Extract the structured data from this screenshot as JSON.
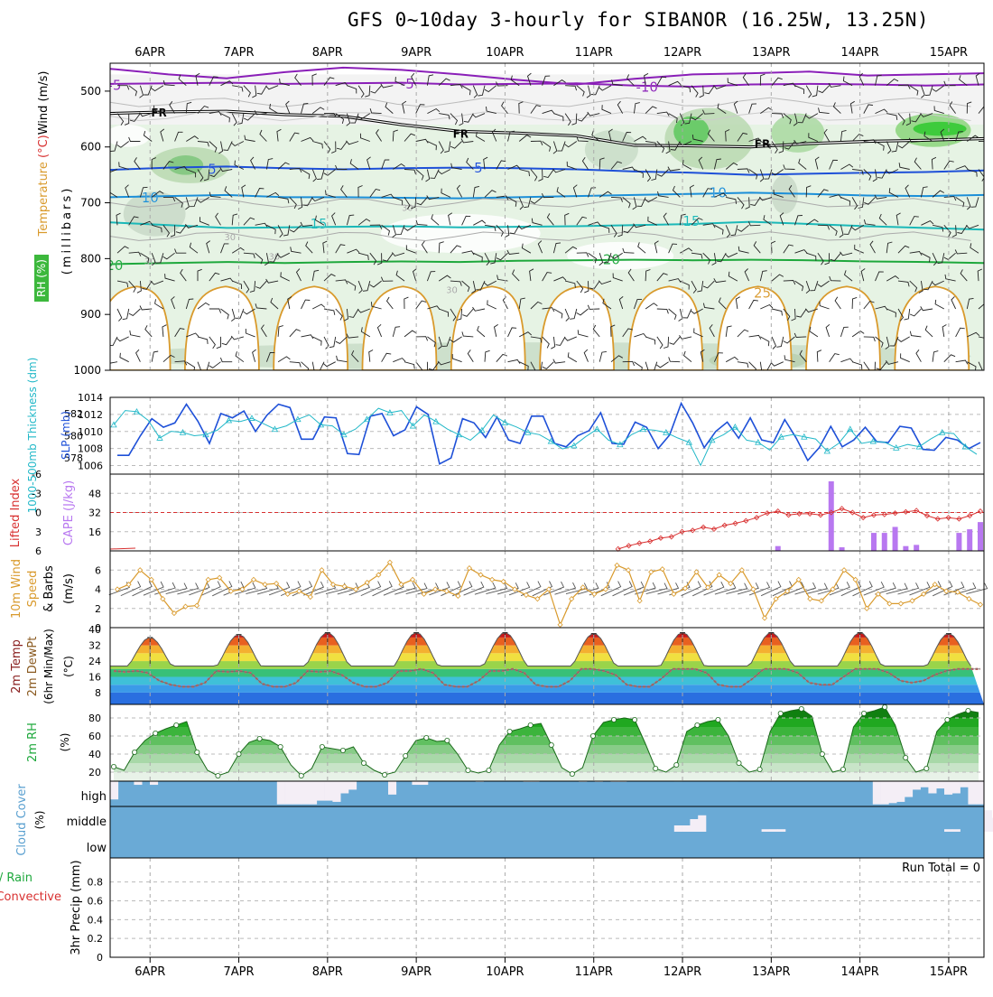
{
  "title": "GFS 0~10day 3-hourly for SIBANOR (16.25W, 13.25N)",
  "dates": [
    "6APR",
    "7APR",
    "8APR",
    "9APR",
    "10APR",
    "11APR",
    "12APR",
    "13APR",
    "14APR",
    "15APR"
  ],
  "colors": {
    "purple": "#8a1fb8",
    "black": "#000000",
    "blue": "#1e50d8",
    "lightblue": "#1c8fd8",
    "teal": "#1bb8b8",
    "green": "#1ea83c",
    "orange": "#d99a2c",
    "cyan": "#22b8c8",
    "red": "#d83030",
    "cape": "#b878f0",
    "cloud": "#6aaad6",
    "cloudClear": "#f4eef6"
  },
  "chart_data": [
    {
      "type": "line",
      "panel": "profile",
      "ylabel_parts": [
        "RH (%)",
        "Temperature",
        "(°C)",
        "Wind",
        "(m/s)",
        "(millibars)"
      ],
      "yticks": [
        500,
        600,
        700,
        800,
        900,
        1000
      ],
      "ylim": [
        1000,
        450
      ],
      "isotherm_labels": [
        {
          "text": "-5",
          "t": 0.6,
          "p": 490
        },
        {
          "text": "-5",
          "t": 3.9,
          "p": 487
        },
        {
          "text": "-10",
          "t": 6.6,
          "p": 493
        },
        {
          "text": "FR",
          "t": 1.1,
          "p": 537
        },
        {
          "text": "FR",
          "t": 4.5,
          "p": 575
        },
        {
          "text": "FR",
          "t": 7.9,
          "p": 593
        },
        {
          "text": "5",
          "t": 1.7,
          "p": 640
        },
        {
          "text": "5",
          "t": 4.7,
          "p": 638
        },
        {
          "text": "10",
          "t": 1.0,
          "p": 691
        },
        {
          "text": "10",
          "t": 7.4,
          "p": 682
        },
        {
          "text": "15",
          "t": 2.9,
          "p": 738
        },
        {
          "text": "15",
          "t": 7.1,
          "p": 733
        },
        {
          "text": "20",
          "t": 0.6,
          "p": 812
        },
        {
          "text": "20",
          "t": 6.2,
          "p": 802
        },
        {
          "text": "25",
          "t": 7.9,
          "p": 862
        },
        {
          "text": "30",
          "t": 3.9,
          "p": 706
        },
        {
          "text": "30",
          "t": 2.4,
          "p": 794
        },
        {
          "text": "30",
          "t": 4.4,
          "p": 854
        },
        {
          "text": "30",
          "t": 1.0,
          "p": 803
        },
        {
          "text": "30",
          "t": 1.9,
          "p": 759
        }
      ],
      "isotherms": [
        {
          "name": "-10",
          "color": "purple",
          "p": [
            460,
            470,
            477,
            466,
            458,
            462,
            470,
            480,
            488,
            478,
            470,
            468,
            465,
            472,
            470,
            468
          ]
        },
        {
          "name": "-5",
          "color": "purple",
          "p": [
            487,
            486,
            485,
            487,
            486,
            485,
            488,
            487,
            486,
            490,
            492,
            488,
            487,
            488,
            490,
            488
          ]
        },
        {
          "name": "FR",
          "color": "black",
          "p": [
            540,
            537,
            536,
            542,
            545,
            560,
            572,
            575,
            580,
            597,
            598,
            600,
            594,
            590,
            588,
            585
          ]
        },
        {
          "name": "5",
          "color": "blue",
          "p": [
            641,
            637,
            635,
            638,
            640,
            638,
            637,
            638,
            640,
            644,
            646,
            650,
            648,
            646,
            645,
            642
          ]
        },
        {
          "name": "10",
          "color": "lightblue",
          "p": [
            690,
            688,
            686,
            690,
            690,
            691,
            692,
            690,
            688,
            686,
            684,
            682,
            684,
            687,
            688,
            686
          ]
        },
        {
          "name": "15",
          "color": "teal",
          "p": [
            735,
            740,
            745,
            744,
            743,
            742,
            744,
            743,
            742,
            740,
            738,
            734,
            738,
            742,
            745,
            748
          ]
        },
        {
          "name": "20",
          "color": "green",
          "p": [
            810,
            808,
            806,
            808,
            806,
            805,
            806,
            804,
            803,
            802,
            803,
            802,
            803,
            805,
            806,
            808
          ]
        }
      ]
    },
    {
      "type": "line",
      "panel": "sealevel",
      "ylabel_left": "1000-500mb Thickness (dm)",
      "ylabel_right": "SLP (mb)",
      "left_ticks": [
        578,
        580,
        582
      ],
      "right_ticks": [
        1006,
        1008,
        1010,
        1012,
        1014
      ],
      "right_ylim": [
        1005,
        1014
      ],
      "slp": [
        1007.2,
        1007.2,
        1009.5,
        1011.5,
        1010.5,
        1011.0,
        1013.2,
        1011.2,
        1008.6,
        1012.1,
        1011.6,
        1012.4,
        1010.0,
        1011.9,
        1013.2,
        1012.8,
        1009.1,
        1009.1,
        1011.7,
        1011.6,
        1007.4,
        1007.3,
        1011.8,
        1012.1,
        1009.5,
        1010.2,
        1012.9,
        1012.0,
        1006.2,
        1006.9,
        1011.5,
        1011.0,
        1009.3,
        1011.7,
        1009.0,
        1008.6,
        1011.8,
        1011.8,
        1008.6,
        1008.2,
        1009.5,
        1010.1,
        1012.2,
        1008.6,
        1008.5,
        1011.1,
        1010.5,
        1008.0,
        1009.6,
        1013.3,
        1011.0,
        1008.1,
        1010.0,
        1011.1,
        1009.2,
        1011.6,
        1009.0,
        1008.7,
        1011.4,
        1009.2,
        1006.6,
        1008.1,
        1010.6,
        1008.2,
        1009.0,
        1010.5,
        1008.8,
        1008.7,
        1010.6,
        1010.4,
        1007.9,
        1007.8,
        1009.3,
        1009.0,
        1008.0,
        1008.7
      ],
      "thickness": [
        581.0,
        582.3,
        582.2,
        581.4,
        579.8,
        580.4,
        580.3,
        580.0,
        580.1,
        580.5,
        581.4,
        581.3,
        581.6,
        581.1,
        580.6,
        580.9,
        581.5,
        581.9,
        581.0,
        580.9,
        580.1,
        580.6,
        581.5,
        582.5,
        582.1,
        582.3,
        580.9,
        581.9,
        581.3,
        580.6,
        580.1,
        579.6,
        580.5,
        581.9,
        581.2,
        580.8,
        580.3,
        580.1,
        579.5,
        578.8,
        579.1,
        579.9,
        580.6,
        579.6,
        579.2,
        580.1,
        580.6,
        580.5,
        580.3,
        579.8,
        579.4,
        577.3,
        579.6,
        580.1,
        580.8,
        579.6,
        579.4,
        578.7,
        579.9,
        580.1,
        579.9,
        579.7,
        578.6,
        579.3,
        580.6,
        579.3,
        579.5,
        579.4,
        578.9,
        579.2,
        579.0,
        579.7,
        580.3,
        580.2,
        579.0,
        578.3
      ]
    },
    {
      "type": "bar",
      "panel": "stability",
      "ylabel_left": "Lifted Index",
      "ylabel_right": "CAPE (J/kg)",
      "left_ticks": [
        -6,
        -3,
        0,
        3,
        6
      ],
      "right_ticks": [
        16,
        32,
        48
      ],
      "cape_ylim": [
        0,
        64
      ],
      "lifted_index": [
        null,
        null,
        null,
        null,
        null,
        null,
        null,
        null,
        null,
        null,
        null,
        null,
        null,
        null,
        null,
        null,
        null,
        null,
        null,
        null,
        null,
        null,
        null,
        null,
        null,
        null,
        null,
        null,
        null,
        null,
        null,
        null,
        null,
        null,
        null,
        null,
        null,
        null,
        null,
        null,
        null,
        null,
        null,
        null,
        null,
        null,
        null,
        5.7,
        5.2,
        4.8,
        4.5,
        4.0,
        3.8,
        3.0,
        2.8,
        2.3,
        2.6,
        2.0,
        1.7,
        1.3,
        0.8,
        0.1,
        -0.2,
        0.4,
        0.2,
        0.2,
        0.4,
        0.0,
        -0.6,
        0.0,
        0.8,
        0.4,
        0.3,
        0.1,
        -0.1,
        -0.3,
        0.5,
        1.0,
        0.8,
        1.0,
        0.5,
        -0.2
      ],
      "cape": [
        0,
        0,
        0,
        0,
        0,
        0,
        0,
        0,
        0,
        0,
        0,
        0,
        0,
        0,
        0,
        0,
        0,
        0,
        0,
        0,
        0,
        0,
        0,
        0,
        0,
        0,
        0,
        0,
        0,
        0,
        0,
        0,
        0,
        0,
        0,
        0,
        0,
        0,
        0,
        0,
        0,
        0,
        0,
        0,
        0,
        0,
        0,
        0,
        0,
        0,
        0,
        0,
        0,
        0,
        0,
        0,
        0,
        0,
        0,
        0,
        0,
        0,
        4,
        0,
        0,
        0,
        0,
        58,
        3,
        0,
        0,
        15,
        15,
        20,
        4,
        5,
        0,
        0,
        0,
        15,
        18,
        24
      ]
    },
    {
      "type": "line",
      "panel": "wind10m",
      "ylabel": "10m Wind Speed & Barbs (m/s)",
      "yticks": [
        0,
        2,
        4,
        6
      ],
      "ylim": [
        0,
        8
      ],
      "speed": [
        4.0,
        4.5,
        6.0,
        5.0,
        3.0,
        1.5,
        2.2,
        2.3,
        5.0,
        5.2,
        3.8,
        4.0,
        5.0,
        4.5,
        4.6,
        3.5,
        3.8,
        3.2,
        6.0,
        4.5,
        4.3,
        4.0,
        4.7,
        5.5,
        6.8,
        4.5,
        5.0,
        3.5,
        4.0,
        3.8,
        3.3,
        6.2,
        5.5,
        5.0,
        4.8,
        4.0,
        3.4,
        3.0,
        4.0,
        0.3,
        3.0,
        4.2,
        3.5,
        4.0,
        6.5,
        6.0,
        2.8,
        5.8,
        6.1,
        3.5,
        4.1,
        5.8,
        4.2,
        5.5,
        4.6,
        6.0,
        4.0,
        1.0,
        3.0,
        3.8,
        5.0,
        3.0,
        2.8,
        4.0,
        6.0,
        5.0,
        2.0,
        3.5,
        2.5,
        2.5,
        2.8,
        3.5,
        4.5,
        3.8,
        3.7,
        3.0,
        2.4
      ]
    },
    {
      "type": "line",
      "panel": "temp2m",
      "ylabel_parts": [
        "2m Temp",
        "2m DewPt",
        "(6hr Min/Max)"
      ],
      "yticks": [
        8,
        16,
        24,
        32,
        40
      ],
      "ylim": [
        2,
        41
      ],
      "maxima": [
        {
          "t": 1.0,
          "v": 36
        },
        {
          "t": 2.0,
          "v": 37.5
        },
        {
          "t": 3.0,
          "v": 38.5
        },
        {
          "t": 4.0,
          "v": 38.5
        },
        {
          "t": 5.0,
          "v": 38.5
        },
        {
          "t": 6.0,
          "v": 38.0
        },
        {
          "t": 7.0,
          "v": 38.5
        },
        {
          "t": 8.0,
          "v": 38.5
        },
        {
          "t": 9.0,
          "v": 38.5
        },
        {
          "t": 10.0,
          "v": 38.0
        }
      ],
      "minima": 21.5,
      "dewpoint": [
        19,
        18.5,
        19,
        18,
        14,
        12,
        11,
        11,
        13,
        19,
        18.5,
        19,
        18,
        12.5,
        11,
        11,
        13,
        19,
        18.5,
        19,
        17,
        13,
        11,
        11,
        13,
        19,
        19,
        20,
        18,
        12,
        11,
        11,
        14,
        19,
        19,
        20,
        18,
        12,
        11,
        11,
        14,
        20,
        20,
        19,
        17,
        12,
        11,
        11,
        15,
        20,
        20,
        20,
        18,
        12,
        11,
        11,
        15,
        20,
        20,
        20,
        18,
        13,
        12,
        12,
        16,
        20,
        20,
        20,
        18,
        14,
        13,
        14,
        17,
        19,
        20,
        20,
        20
      ]
    },
    {
      "type": "area",
      "panel": "rh2m",
      "ylabel": "2m RH (%)",
      "yticks": [
        20,
        40,
        60,
        80
      ],
      "ylim": [
        10,
        95
      ],
      "rh": [
        26,
        22,
        42,
        55,
        63,
        68,
        72,
        76,
        42,
        22,
        16,
        20,
        40,
        53,
        57,
        55,
        48,
        28,
        16,
        24,
        48,
        46,
        44,
        48,
        30,
        22,
        17,
        20,
        38,
        55,
        58,
        54,
        55,
        40,
        22,
        19,
        22,
        50,
        65,
        68,
        72,
        74,
        50,
        25,
        18,
        25,
        60,
        75,
        78,
        80,
        78,
        52,
        24,
        20,
        28,
        65,
        72,
        76,
        78,
        60,
        30,
        20,
        23,
        65,
        85,
        88,
        90,
        82,
        40,
        20,
        23,
        70,
        85,
        88,
        92,
        72,
        36,
        20,
        24,
        65,
        78,
        84,
        88,
        86
      ]
    },
    {
      "type": "area",
      "panel": "cloud",
      "ylabel": "Cloud Cover (%)",
      "levels": [
        "high",
        "middle",
        "low"
      ],
      "high": [
        0.75,
        0,
        0,
        0.15,
        0,
        0.15,
        0,
        0,
        0,
        0,
        0,
        0,
        0,
        0,
        0,
        0,
        0,
        0,
        0,
        0,
        0,
        0.95,
        0.95,
        0.95,
        0.95,
        0.95,
        0.8,
        0.8,
        0.85,
        0.5,
        0.35,
        0,
        0,
        0,
        0,
        0.55,
        0,
        0,
        0.15,
        0.15,
        0,
        0,
        0,
        0,
        0,
        0,
        0.03,
        0,
        0,
        0,
        0,
        0,
        0.03,
        0.03,
        0,
        0,
        0,
        0,
        0,
        0.03,
        0,
        0.03,
        0,
        0.03,
        0.03,
        0,
        0,
        0,
        0,
        0,
        0,
        0.02,
        0,
        0,
        0,
        0,
        0,
        0,
        0.02,
        0,
        0,
        0,
        0,
        0,
        0,
        0,
        0,
        0,
        0,
        0,
        0,
        0,
        0,
        0,
        0,
        0,
        0.95,
        0.95,
        0.9,
        0.85,
        0.65,
        0.35,
        0.25,
        0.5,
        0.3,
        0.55,
        0.5,
        0.25,
        0.95,
        0.95
      ],
      "middle": [
        0,
        0,
        0,
        0,
        0,
        0,
        0,
        0,
        0,
        0,
        0,
        0,
        0,
        0,
        0,
        0,
        0,
        0,
        0,
        0,
        0,
        0,
        0,
        0,
        0,
        0,
        0,
        0,
        0,
        0,
        0,
        0,
        0,
        0,
        0,
        0,
        0,
        0,
        0,
        0,
        0,
        0,
        0,
        0,
        0,
        0,
        0,
        0,
        0,
        0,
        0,
        0,
        0,
        0,
        0,
        0,
        0,
        0,
        0,
        0,
        0,
        0,
        0,
        0,
        0,
        0,
        0,
        0,
        0,
        0,
        0,
        0.25,
        0.25,
        0.5,
        0.65,
        0,
        0,
        0,
        0,
        0,
        0,
        0,
        0.1,
        0.1,
        0.1,
        0,
        0,
        0,
        0,
        0,
        0,
        0,
        0,
        0,
        0,
        0,
        0,
        0,
        0,
        0,
        0,
        0,
        0,
        0,
        0,
        0.1,
        0.1,
        0,
        0,
        0,
        0.85,
        0.55
      ]
    },
    {
      "type": "bar",
      "panel": "precip",
      "ylabel": "3hr Precip (mm)",
      "ylabel_left_parts": [
        "Total / Rain",
        "Convective"
      ],
      "yticks": [
        0,
        0.2,
        0.4,
        0.6,
        0.8
      ],
      "ylim": [
        0,
        1
      ],
      "run_total": "Run Total = 0",
      "values": []
    }
  ]
}
